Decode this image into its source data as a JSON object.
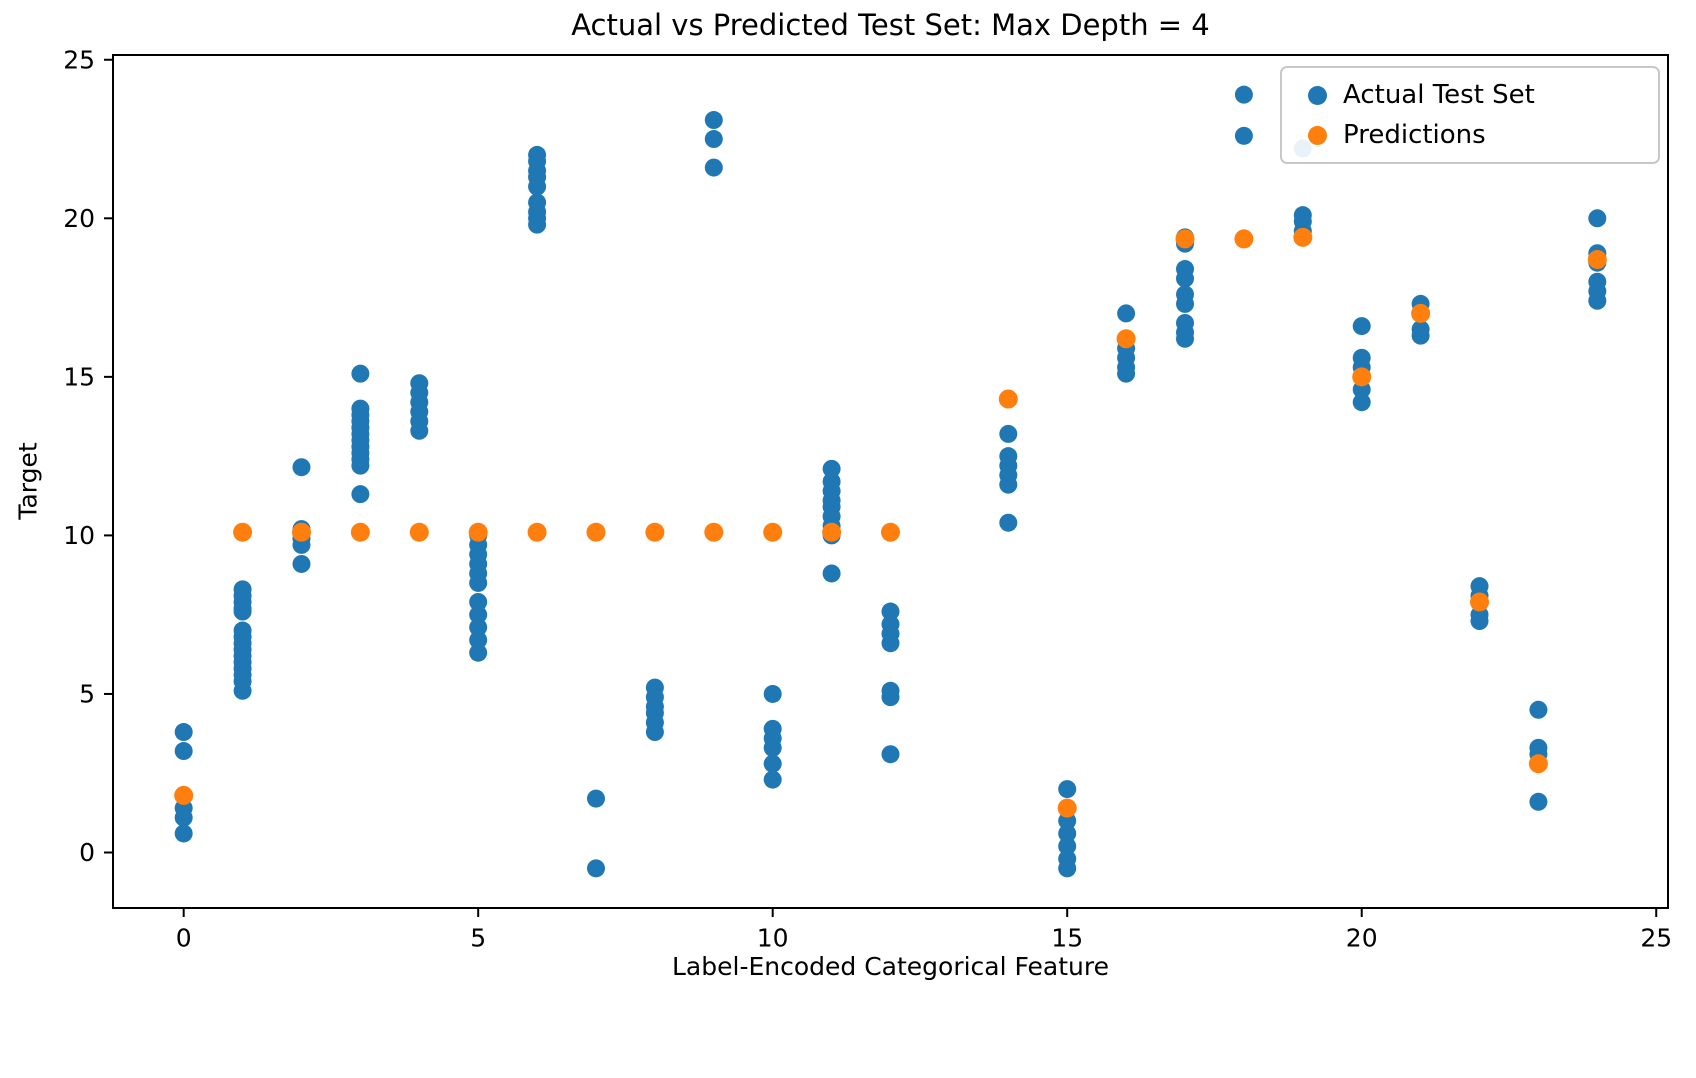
{
  "chart_data": {
    "type": "scatter",
    "title": "Actual vs Predicted Test Set: Max Depth = 4",
    "xlabel": "Label-Encoded Categorical Feature",
    "ylabel": "Target",
    "xlim": [
      -1.2,
      25.2
    ],
    "ylim": [
      -1.75,
      25.15
    ],
    "xticks": [
      0,
      5,
      10,
      15,
      20,
      25
    ],
    "yticks": [
      0,
      5,
      10,
      15,
      20,
      25
    ],
    "grid": false,
    "legend": {
      "position": "upper right",
      "entries": [
        {
          "label": "Actual Test Set",
          "color": "#1f77b4"
        },
        {
          "label": "Predictions",
          "color": "#ff7f0e"
        }
      ]
    },
    "series": [
      {
        "name": "Actual Test Set",
        "color": "#1f77b4",
        "marker_radius": 9,
        "points": [
          [
            0,
            3.8
          ],
          [
            0,
            3.2
          ],
          [
            0,
            1.4
          ],
          [
            0,
            1.1
          ],
          [
            0,
            0.6
          ],
          [
            1,
            8.3
          ],
          [
            1,
            8.1
          ],
          [
            1,
            7.9
          ],
          [
            1,
            7.7
          ],
          [
            1,
            7.6
          ],
          [
            1,
            7.0
          ],
          [
            1,
            6.8
          ],
          [
            1,
            6.6
          ],
          [
            1,
            6.4
          ],
          [
            1,
            6.2
          ],
          [
            1,
            6.0
          ],
          [
            1,
            5.8
          ],
          [
            1,
            5.6
          ],
          [
            1,
            5.4
          ],
          [
            1,
            5.1
          ],
          [
            2,
            12.15
          ],
          [
            2,
            10.2
          ],
          [
            2,
            9.9
          ],
          [
            2,
            9.7
          ],
          [
            2,
            9.1
          ],
          [
            3,
            15.1
          ],
          [
            3,
            14.0
          ],
          [
            3,
            13.8
          ],
          [
            3,
            13.6
          ],
          [
            3,
            13.4
          ],
          [
            3,
            13.2
          ],
          [
            3,
            13.0
          ],
          [
            3,
            12.8
          ],
          [
            3,
            12.6
          ],
          [
            3,
            12.4
          ],
          [
            3,
            12.2
          ],
          [
            3,
            11.3
          ],
          [
            4,
            14.8
          ],
          [
            4,
            14.5
          ],
          [
            4,
            14.2
          ],
          [
            4,
            13.9
          ],
          [
            4,
            13.6
          ],
          [
            4,
            13.3
          ],
          [
            5,
            10.0
          ],
          [
            5,
            9.7
          ],
          [
            5,
            9.4
          ],
          [
            5,
            9.1
          ],
          [
            5,
            8.8
          ],
          [
            5,
            8.5
          ],
          [
            5,
            7.9
          ],
          [
            5,
            7.5
          ],
          [
            5,
            7.1
          ],
          [
            5,
            6.7
          ],
          [
            5,
            6.3
          ],
          [
            6,
            22.0
          ],
          [
            6,
            21.8
          ],
          [
            6,
            21.5
          ],
          [
            6,
            21.3
          ],
          [
            6,
            21.0
          ],
          [
            6,
            20.5
          ],
          [
            6,
            20.2
          ],
          [
            6,
            20.0
          ],
          [
            6,
            19.8
          ],
          [
            7,
            1.7
          ],
          [
            7,
            -0.5
          ],
          [
            8,
            5.2
          ],
          [
            8,
            4.9
          ],
          [
            8,
            4.6
          ],
          [
            8,
            4.4
          ],
          [
            8,
            4.1
          ],
          [
            8,
            3.8
          ],
          [
            9,
            23.1
          ],
          [
            9,
            22.5
          ],
          [
            9,
            21.6
          ],
          [
            10,
            5.0
          ],
          [
            10,
            3.9
          ],
          [
            10,
            3.6
          ],
          [
            10,
            3.3
          ],
          [
            10,
            2.8
          ],
          [
            10,
            2.3
          ],
          [
            11,
            12.1
          ],
          [
            11,
            11.7
          ],
          [
            11,
            11.4
          ],
          [
            11,
            11.1
          ],
          [
            11,
            10.9
          ],
          [
            11,
            10.6
          ],
          [
            11,
            10.3
          ],
          [
            11,
            10.0
          ],
          [
            11,
            8.8
          ],
          [
            12,
            7.6
          ],
          [
            12,
            7.2
          ],
          [
            12,
            6.9
          ],
          [
            12,
            6.6
          ],
          [
            12,
            5.1
          ],
          [
            12,
            4.9
          ],
          [
            12,
            3.1
          ],
          [
            14,
            13.2
          ],
          [
            14,
            12.5
          ],
          [
            14,
            12.2
          ],
          [
            14,
            11.9
          ],
          [
            14,
            11.6
          ],
          [
            14,
            10.4
          ],
          [
            15,
            2.0
          ],
          [
            15,
            1.0
          ],
          [
            15,
            0.6
          ],
          [
            15,
            0.2
          ],
          [
            15,
            -0.2
          ],
          [
            15,
            -0.5
          ],
          [
            16,
            17.0
          ],
          [
            16,
            16.2
          ],
          [
            16,
            15.9
          ],
          [
            16,
            15.6
          ],
          [
            16,
            15.3
          ],
          [
            16,
            15.1
          ],
          [
            17,
            19.4
          ],
          [
            17,
            19.2
          ],
          [
            17,
            18.4
          ],
          [
            17,
            18.1
          ],
          [
            17,
            17.6
          ],
          [
            17,
            17.3
          ],
          [
            17,
            16.7
          ],
          [
            17,
            16.4
          ],
          [
            17,
            16.2
          ],
          [
            18,
            23.9
          ],
          [
            18,
            22.6
          ],
          [
            19,
            22.2
          ],
          [
            19,
            20.1
          ],
          [
            19,
            19.9
          ],
          [
            19,
            19.6
          ],
          [
            20,
            16.6
          ],
          [
            20,
            15.6
          ],
          [
            20,
            15.3
          ],
          [
            20,
            15.0
          ],
          [
            20,
            14.6
          ],
          [
            20,
            14.2
          ],
          [
            21,
            17.3
          ],
          [
            21,
            17.0
          ],
          [
            21,
            16.5
          ],
          [
            21,
            16.3
          ],
          [
            22,
            8.4
          ],
          [
            22,
            8.1
          ],
          [
            22,
            7.9
          ],
          [
            22,
            7.5
          ],
          [
            22,
            7.3
          ],
          [
            23,
            4.5
          ],
          [
            23,
            3.3
          ],
          [
            23,
            3.1
          ],
          [
            23,
            1.6
          ],
          [
            24,
            20.0
          ],
          [
            24,
            18.9
          ],
          [
            24,
            18.6
          ],
          [
            24,
            18.0
          ],
          [
            24,
            17.7
          ],
          [
            24,
            17.4
          ]
        ]
      },
      {
        "name": "Predictions",
        "color": "#ff7f0e",
        "marker_radius": 9.5,
        "points": [
          [
            0,
            1.8
          ],
          [
            1,
            10.1
          ],
          [
            2,
            10.1
          ],
          [
            3,
            10.1
          ],
          [
            4,
            10.1
          ],
          [
            5,
            10.1
          ],
          [
            6,
            10.1
          ],
          [
            7,
            10.1
          ],
          [
            8,
            10.1
          ],
          [
            9,
            10.1
          ],
          [
            10,
            10.1
          ],
          [
            11,
            10.1
          ],
          [
            12,
            10.1
          ],
          [
            14,
            14.3
          ],
          [
            15,
            1.4
          ],
          [
            16,
            16.2
          ],
          [
            17,
            19.35
          ],
          [
            18,
            19.35
          ],
          [
            19,
            19.4
          ],
          [
            20,
            15.0
          ],
          [
            21,
            17.0
          ],
          [
            22,
            7.9
          ],
          [
            23,
            2.8
          ],
          [
            24,
            18.7
          ]
        ]
      }
    ]
  }
}
